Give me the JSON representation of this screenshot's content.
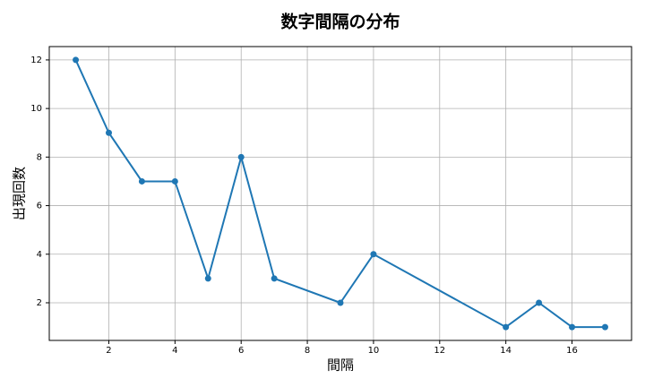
{
  "chart_data": {
    "type": "line",
    "title": "数字間隔の分布",
    "x_label": "間隔",
    "y_label": "出現回数",
    "x": [
      1,
      2,
      3,
      4,
      5,
      6,
      7,
      9,
      10,
      14,
      15,
      16,
      17
    ],
    "series": [
      {
        "name": "出現回数",
        "color": "#1f77b4",
        "values": [
          12,
          9,
          7,
          7,
          3,
          8,
          3,
          2,
          4,
          1,
          2,
          1,
          1
        ]
      }
    ],
    "xlim": [
      0.2,
      17.8
    ],
    "xticks": [
      2,
      4,
      6,
      8,
      10,
      12,
      14,
      16
    ],
    "ylim": [
      0.45,
      12.55
    ],
    "yticks": [
      2,
      4,
      6,
      8,
      10,
      12
    ],
    "grid": true
  }
}
